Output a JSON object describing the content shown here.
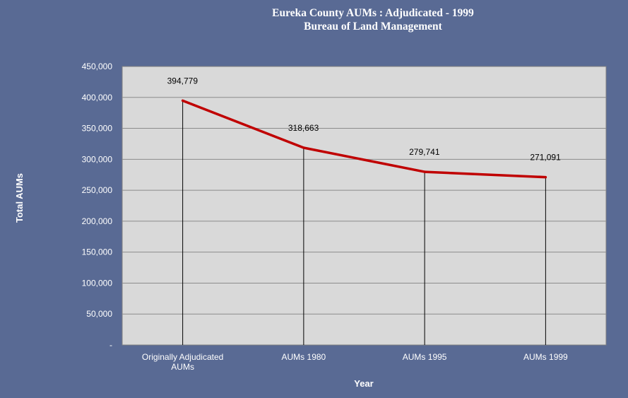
{
  "chart_data": {
    "type": "line",
    "title": "Eureka County AUMs :  Adjudicated - 1999",
    "subtitle": "Bureau of Land Management",
    "xlabel": "Year",
    "ylabel": "Total AUMs",
    "categories": [
      "Originally Adjudicated AUMs",
      "AUMs 1980",
      "AUMs 1995",
      "AUMs 1999"
    ],
    "category_lines": [
      [
        "Originally Adjudicated",
        "AUMs"
      ],
      [
        "AUMs 1980"
      ],
      [
        "AUMs 1995"
      ],
      [
        "AUMs 1999"
      ]
    ],
    "series": [
      {
        "values": [
          394779,
          318663,
          279741,
          271091
        ]
      }
    ],
    "data_labels": [
      "394,779",
      "318,663",
      "279,741",
      "271,091"
    ],
    "ylim": [
      0,
      450000
    ],
    "yticks": [
      0,
      50000,
      100000,
      150000,
      200000,
      250000,
      300000,
      350000,
      400000,
      450000
    ],
    "ytick_labels": [
      "-",
      "50,000",
      "100,000",
      "150,000",
      "200,000",
      "250,000",
      "300,000",
      "350,000",
      "400,000",
      "450,000"
    ],
    "grid": true,
    "drop_lines": true,
    "legend": "none"
  },
  "colors": {
    "background": "#596a94",
    "plot_area": "#d9d9d9",
    "line": "#c00000",
    "grid": "#8c8c8c",
    "text": "#ffffff"
  }
}
